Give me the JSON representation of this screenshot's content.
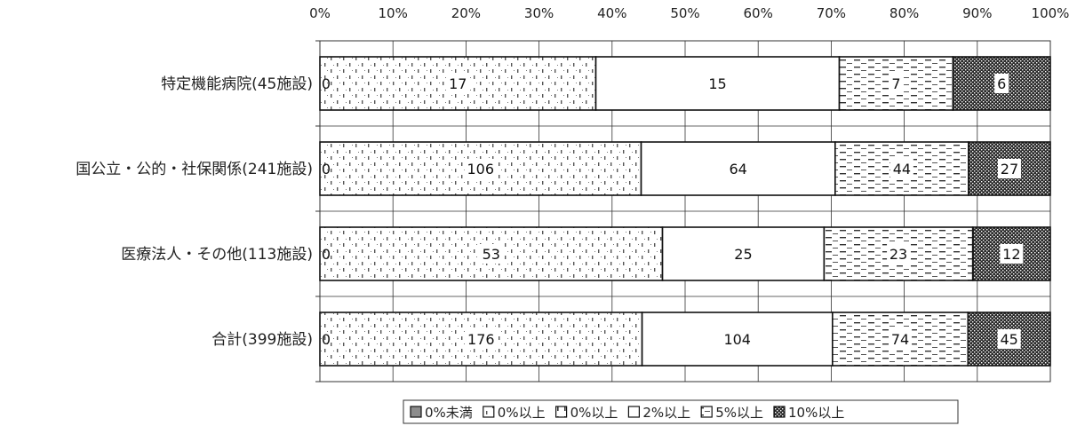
{
  "chart_data": {
    "type": "bar",
    "orientation": "horizontal",
    "stacked": "percent",
    "title": "",
    "xlim": [
      0,
      100
    ],
    "x_ticks": [
      "0%",
      "10%",
      "20%",
      "30%",
      "40%",
      "50%",
      "60%",
      "70%",
      "80%",
      "90%",
      "100%"
    ],
    "grid": true,
    "legend_position": "bottom",
    "categories": [
      "特定機能病院(45施設)",
      "国公立・公的・社保関係(241施設)",
      "医療法人・その他(113施設)",
      "合計(399施設)"
    ],
    "series": [
      {
        "name": "0%未満",
        "pattern": "solid-gray",
        "color": "#8c8c8c",
        "values": [
          0,
          0,
          0,
          0
        ]
      },
      {
        "name": "0%以上",
        "pattern": "dots",
        "color": "#ffffff",
        "values": [
          17,
          106,
          53,
          176
        ]
      },
      {
        "name": "0%以上",
        "pattern": "vertical-dashes",
        "color": "#ffffff",
        "values": [
          0,
          0,
          0,
          0
        ]
      },
      {
        "name": "2%以上",
        "pattern": "blank",
        "color": "#ffffff",
        "values": [
          15,
          64,
          25,
          104
        ]
      },
      {
        "name": "5%以上",
        "pattern": "horizontal-dashes",
        "color": "#ffffff",
        "values": [
          7,
          44,
          23,
          74
        ]
      },
      {
        "name": "10%以上",
        "pattern": "dense-checker",
        "color": "#222222",
        "values": [
          6,
          27,
          12,
          45
        ]
      }
    ]
  }
}
